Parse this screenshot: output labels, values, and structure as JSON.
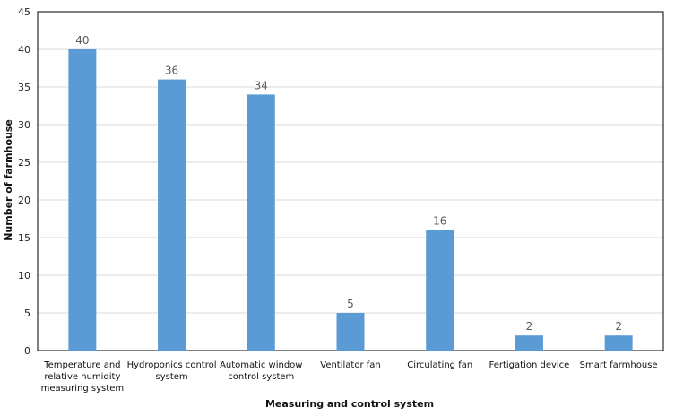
{
  "chart_data": {
    "type": "bar",
    "title": "",
    "xlabel": "Measuring and control system",
    "ylabel": "Number of farmhouse",
    "ylim": [
      0,
      45
    ],
    "ytick_step": 5,
    "grid": true,
    "legend": "none",
    "bar_color": "#5b9bd5",
    "categories": [
      "Temperature and relative humidity measuring system",
      "Hydroponics control system",
      "Automatic window control system",
      "Ventilator fan",
      "Circulating fan",
      "Fertigation device",
      "Smart farmhouse"
    ],
    "category_lines": [
      [
        "Temperature and",
        "relative humidity",
        "measuring system"
      ],
      [
        "Hydroponics control",
        "system"
      ],
      [
        "Automatic window",
        "control system"
      ],
      [
        "Ventilator fan"
      ],
      [
        "Circulating fan"
      ],
      [
        "Fertigation device"
      ],
      [
        "Smart farmhouse"
      ]
    ],
    "values": [
      40,
      36,
      34,
      5,
      16,
      2,
      2
    ]
  }
}
